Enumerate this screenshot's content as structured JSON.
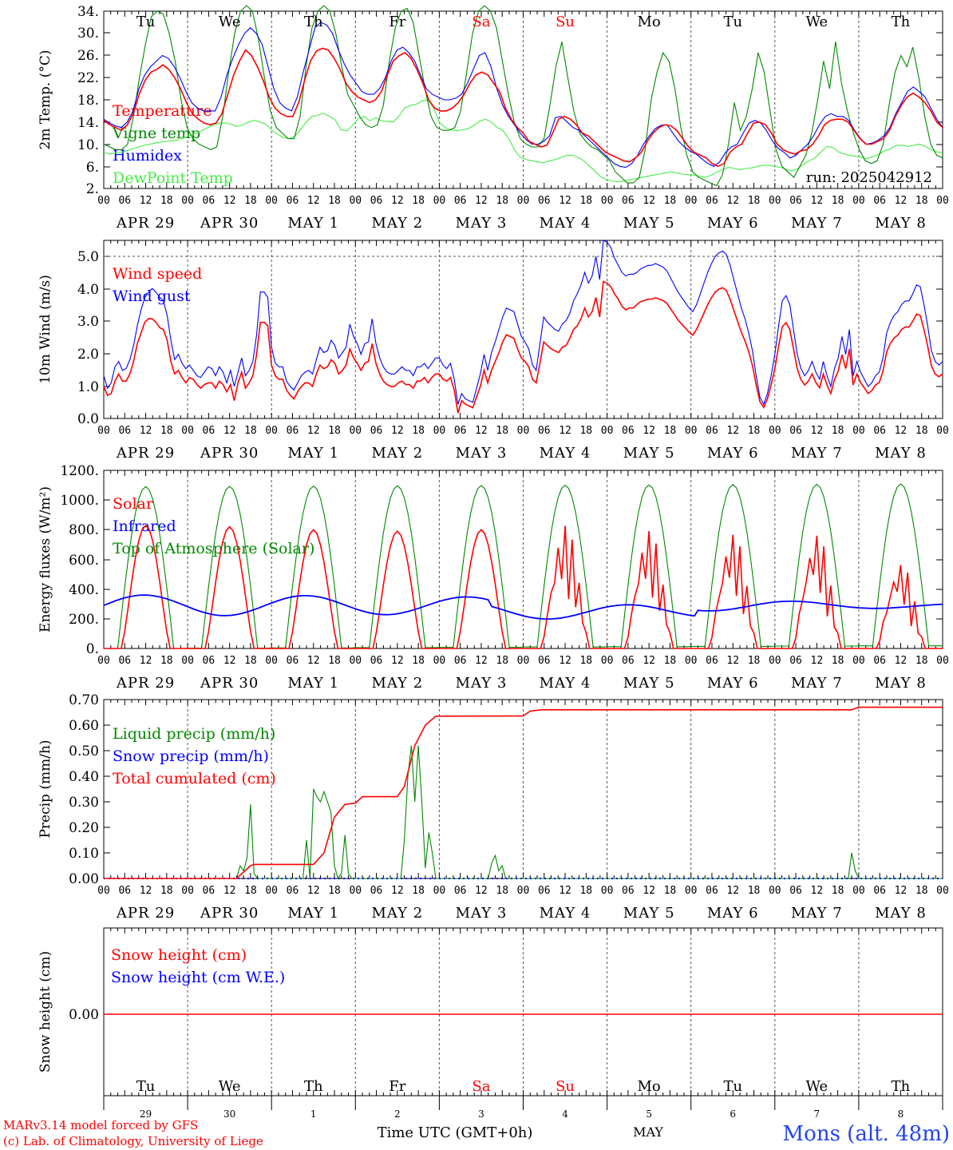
{
  "chart_data": [
    {
      "id": "temp",
      "type": "line",
      "ylabel": "2m Temp. (°C)",
      "ylim": [
        2,
        34
      ],
      "yticks": [
        "34.",
        "30.",
        "26.",
        "22.",
        "18.",
        "14.",
        "10.",
        "6.",
        "2."
      ],
      "legend": [
        "Temperature",
        "Vigne temp",
        "Humidex",
        "DewPoint Temp"
      ],
      "annotation": "run: 2025042912",
      "series": [
        {
          "name": "Temperature",
          "color": "#ff0000",
          "values": [
            14.3,
            13.5,
            13.0,
            12.5,
            13.5,
            15.5,
            19,
            21.5,
            23,
            23.5,
            24.3,
            23.5,
            22,
            20,
            17.5,
            15.5,
            14.5,
            13.8,
            13.5,
            13.8,
            15.5,
            19,
            22.5,
            25,
            27,
            26,
            24,
            21.5,
            18.5,
            16.5,
            15.5,
            15,
            15,
            17.5,
            21.5,
            25,
            26.8,
            27.3,
            27,
            25.5,
            23.5,
            21,
            19.5,
            18.5,
            18,
            17.5,
            18,
            19.5,
            22.5,
            25,
            26,
            26.5,
            25.5,
            23.5,
            21,
            18,
            16.5,
            16,
            16,
            16.5,
            17.5,
            19,
            21,
            22.5,
            23,
            22.5,
            21,
            19.5,
            16.5,
            14.5,
            13,
            12,
            10.5,
            10,
            9.5,
            9.8,
            12,
            14.5,
            15,
            14.5,
            13.5,
            12,
            11.5,
            10.5,
            9.5,
            8.5,
            8,
            7.5,
            7,
            6.8,
            7.5,
            8.5,
            10.5,
            12,
            13,
            13.5,
            13.3,
            12.5,
            11,
            9.5,
            8.5,
            8,
            7.5,
            6.5,
            6,
            6.5,
            8.5,
            9.5,
            10,
            12,
            13.8,
            14,
            13.5,
            12,
            10,
            9,
            8.5,
            8.2,
            8.8,
            9,
            10,
            11.5,
            13.5,
            14.3,
            14.5,
            14.5,
            14,
            12.5,
            11,
            10,
            10,
            10.5,
            11,
            12.5,
            15,
            17,
            18.5,
            19.2,
            18.5,
            17.5,
            16,
            14,
            13
          ]
        },
        {
          "name": "Vigne temp",
          "color": "#008800",
          "values": [
            10,
            9.5,
            9,
            9,
            10,
            15,
            22,
            28,
            33,
            34,
            33.5,
            30,
            25,
            18,
            13,
            11,
            10,
            9.5,
            9,
            9.5,
            15,
            23,
            30,
            34,
            35,
            34,
            29,
            22,
            16,
            13,
            12,
            11,
            11,
            15,
            24,
            31,
            34,
            35,
            34,
            30,
            24,
            19,
            17,
            15,
            13.5,
            13,
            13.5,
            17,
            25,
            31,
            34,
            34.5,
            32,
            26,
            20,
            15,
            13,
            12.5,
            12.5,
            13,
            16,
            23,
            30,
            34,
            35,
            34,
            31,
            25,
            19,
            14,
            11,
            10,
            9.5,
            9.5,
            11,
            17,
            24,
            28.5,
            22,
            16,
            12,
            10.5,
            9.5,
            9,
            8,
            7,
            5,
            4,
            3,
            3,
            4,
            9,
            18,
            23,
            26.5,
            25,
            20,
            13,
            8,
            5,
            4,
            3.5,
            3,
            2.5,
            4.5,
            10,
            17.5,
            12.5,
            15,
            20,
            26.5,
            23,
            16,
            9,
            6,
            5,
            4,
            6,
            8,
            12,
            18,
            25,
            20,
            28.5,
            21,
            16,
            12,
            9,
            7,
            6.5,
            7,
            10,
            17,
            23,
            26,
            24,
            27.5,
            22,
            15,
            10,
            8,
            7.5
          ]
        },
        {
          "name": "Humidex",
          "color": "#0000ff",
          "values": [
            14.5,
            13.8,
            13.3,
            13,
            14,
            16,
            20,
            22.5,
            24,
            25,
            26,
            25.5,
            24,
            22,
            19.5,
            17.5,
            16.5,
            16,
            16,
            16,
            18.5,
            22.5,
            25.5,
            28,
            30,
            31,
            30,
            28,
            24,
            20,
            17.5,
            16.5,
            16,
            18.5,
            23,
            27,
            31,
            32,
            31.5,
            30,
            27,
            24.5,
            22.5,
            21,
            19.5,
            19,
            19,
            20,
            22,
            25,
            27,
            27.5,
            26.5,
            25,
            22.5,
            20,
            19,
            18.5,
            18,
            18,
            18.3,
            19,
            21,
            23.5,
            26,
            26.5,
            24,
            20,
            17,
            15,
            13.5,
            12,
            10.8,
            10,
            10,
            10.5,
            11.5,
            14.8,
            15,
            14,
            13,
            12.5,
            11.5,
            10.5,
            9.5,
            8.5,
            7.5,
            6.5,
            6,
            5.8,
            6.5,
            8,
            10,
            11.5,
            12.8,
            13.4,
            13.5,
            12,
            10.5,
            9.5,
            8.7,
            8.2,
            7.3,
            6.5,
            6,
            6.8,
            8.5,
            9.5,
            10,
            12,
            13.8,
            14.3,
            13.8,
            12.4,
            10.5,
            9.2,
            8.5,
            7.5,
            8,
            9,
            10,
            11.5,
            13.5,
            15,
            15.5,
            15,
            15,
            14.3,
            12.5,
            11,
            10,
            10.2,
            10.7,
            11.5,
            13,
            15.5,
            17.5,
            19.5,
            20.3,
            19.5,
            18.5,
            16.5,
            14.5,
            13
          ]
        },
        {
          "name": "DewPoint Temp",
          "color": "#44ee44",
          "values": [
            8.5,
            8.2,
            8.4,
            8.5,
            8.8,
            9.2,
            9.5,
            9.8,
            10,
            10.2,
            10.4,
            10.5,
            10.6,
            10.8,
            11.2,
            11.6,
            12,
            12.5,
            13,
            13.5,
            13.8,
            13.8,
            13.6,
            13.2,
            13.4,
            14,
            14.3,
            14,
            13.6,
            12.6,
            11.8,
            11.2,
            11,
            11.4,
            12.6,
            14,
            15,
            15.2,
            15.6,
            15,
            14.4,
            12.6,
            12.4,
            13.4,
            14.6,
            15,
            14.2,
            14.8,
            14.2,
            14.1,
            14,
            15,
            16.5,
            17,
            17.2,
            17.8,
            18,
            16.6,
            14,
            13,
            12.6,
            12.4,
            12.6,
            12.8,
            13.4,
            14.2,
            14.5,
            14,
            13,
            12.5,
            11,
            9,
            7.6,
            7.2,
            7,
            6.8,
            6.6,
            7,
            7.2,
            7.6,
            8,
            8,
            7.6,
            7,
            6,
            5,
            4,
            3.6,
            3.3,
            3.2,
            3.4,
            3.6,
            3.8,
            4,
            4.2,
            4.4,
            4.6,
            4.8,
            5,
            4.8,
            4.6,
            4.5,
            4.4,
            4.2,
            4,
            4.4,
            5,
            5.4,
            5.8,
            5.6,
            5.4,
            5.6,
            5.7,
            6,
            6.2,
            6.2,
            6,
            5.8,
            5.4,
            5.2,
            5.6,
            6.4,
            7,
            7.6,
            8.6,
            9.6,
            9.4,
            8.6,
            8.2,
            8,
            7.8,
            7.6,
            7.4,
            7.8,
            8.2,
            8.8,
            9.2,
            9.8,
            9.8,
            9.6,
            9.8,
            10,
            9.6,
            9,
            8.6,
            8.4
          ]
        }
      ]
    },
    {
      "id": "wind",
      "type": "line",
      "ylabel": "10m Wind (m/s)",
      "ylim": [
        0,
        5
      ],
      "yticks": [
        "5.0",
        "4.0",
        "3.0",
        "2.0",
        "1.0",
        "0.0"
      ],
      "legend": [
        "Wind speed",
        "Wind gust"
      ],
      "series": [
        {
          "name": "Wind speed",
          "color": "#ff0000",
          "values": [
            0.9,
            0.65,
            0.7,
            1.05,
            1.25,
            1.05,
            1.05,
            1.25,
            1.6,
            2.1,
            2.4,
            2.7,
            2.8,
            2.8,
            2.7,
            2.55,
            2.5,
            2.2,
            1.6,
            1.25,
            1.35,
            1.15,
            1.0,
            1.15,
            1.1,
            0.95,
            0.85,
            0.95,
            1.0,
            1.0,
            0.85,
            1.05,
            0.95,
            0.75,
            0.95,
            0.5,
            1.0,
            1.3,
            0.85,
            1.0,
            1.2,
            1.8,
            2.7,
            2.7,
            2.6,
            1.5,
            1.2,
            1.1,
            1.1,
            0.8,
            0.65,
            0.55,
            0.75,
            0.9,
            1.0,
            1.0,
            0.9,
            1.25,
            1.5,
            1.4,
            1.45,
            1.65,
            1.55,
            1.25,
            1.35,
            1.5,
            1.95,
            1.7,
            1.55,
            1.35,
            1.55,
            1.6,
            2.1,
            1.55,
            1.25,
            1.05,
            0.95,
            0.9,
            0.9,
            1.0,
            1.05,
            0.95,
            0.95,
            0.85,
            1.05,
            1.05,
            1.15,
            1.0,
            1.15,
            1.25,
            1.25,
            1.1,
            1.05,
            1.15,
            0.8,
            0.15,
            0.5,
            0.4,
            0.35,
            0.3,
            0.6,
            0.9,
            1.35,
            1.0,
            1.35,
            1.6,
            1.85,
            2.15,
            2.35,
            2.3,
            2.25,
            1.95,
            1.7,
            1.6,
            1.45,
            1.1,
            1.0,
            1.55,
            2.15,
            2.05,
            1.95,
            1.9,
            1.85,
            2.0,
            2.05,
            2.25,
            2.5,
            2.6,
            2.8,
            3.1,
            2.85,
            3.0,
            3.4,
            2.85,
            3.85,
            3.8,
            3.7,
            3.5,
            3.35,
            3.15,
            3.05,
            3.1,
            3.1
          ]
        },
        {
          "name": "Wind gust",
          "color": "#0000ff",
          "values": [
            1.2,
            0.85,
            1.0,
            1.45,
            1.6,
            1.35,
            1.4,
            1.65,
            2.05,
            2.6,
            3.05,
            3.4,
            3.55,
            3.65,
            3.55,
            3.4,
            3.3,
            2.9,
            2.2,
            1.65,
            1.8,
            1.55,
            1.4,
            1.5,
            1.35,
            1.2,
            1.15,
            1.3,
            1.45,
            1.4,
            1.2,
            1.45,
            1.3,
            1.0,
            1.35,
            0.9,
            1.3,
            1.7,
            1.2,
            1.35,
            1.6,
            2.35,
            3.55,
            3.55,
            3.4,
            2.0,
            1.55,
            1.45,
            1.45,
            1.05,
            0.9,
            0.8,
            1.0,
            1.2,
            1.3,
            1.35,
            1.25,
            1.65,
            2.0,
            1.85,
            1.9,
            2.2,
            2.05,
            1.7,
            1.85,
            2.0,
            2.65,
            2.3,
            2.1,
            1.8,
            2.1,
            2.15,
            2.8,
            2.1,
            1.7,
            1.45,
            1.3,
            1.25,
            1.25,
            1.35,
            1.45,
            1.35,
            1.35,
            1.2,
            1.45,
            1.45,
            1.55,
            1.4,
            1.55,
            1.7,
            1.7,
            1.5,
            1.4,
            1.55,
            1.1,
            0.4,
            0.7,
            0.55,
            0.5,
            0.45,
            0.85,
            1.25,
            1.8,
            1.35,
            1.85,
            2.15,
            2.5,
            2.85,
            3.1,
            3.05,
            3.0,
            2.65,
            2.3,
            2.15,
            1.95,
            1.5,
            1.35,
            2.1,
            2.85,
            2.7,
            2.6,
            2.5,
            2.45,
            2.65,
            2.75,
            2.95,
            3.3,
            3.5,
            3.75,
            4.1,
            3.8,
            4.0,
            4.55,
            3.9,
            5.0,
            4.95,
            4.8,
            4.5,
            4.3,
            4.1,
            4.0,
            4.05,
            4.05
          ]
        }
      ]
    },
    {
      "id": "energy",
      "type": "line",
      "ylabel": "Energy fluxes (W/m²)",
      "ylim": [
        0,
        1200
      ],
      "yticks": [
        "1200.",
        "1000.",
        "800.",
        "600.",
        "400.",
        "200.",
        "0."
      ],
      "legend": [
        "Solar",
        "Infrared",
        "Top of Atmosphere (Solar)"
      ],
      "series": [
        {
          "name": "Solar",
          "color": "#ff0000"
        },
        {
          "name": "Infrared",
          "color": "#0000ff"
        },
        {
          "name": "Top of Atmosphere (Solar)",
          "color": "#008800"
        }
      ]
    },
    {
      "id": "precip",
      "type": "line",
      "ylabel": "Precip (mm/h)",
      "ylim": [
        0,
        0.7
      ],
      "yticks": [
        "0.70",
        "0.60",
        "0.50",
        "0.40",
        "0.30",
        "0.20",
        "0.10",
        "0.00"
      ],
      "legend": [
        "Liquid precip (mm/h)",
        "Snow precip (mm/h)",
        "Total cumulated (cm)"
      ],
      "series": [
        {
          "name": "Liquid precip (mm/h)",
          "color": "#008800"
        },
        {
          "name": "Snow precip (mm/h)",
          "color": "#0000ff"
        },
        {
          "name": "Total cumulated (cm)",
          "color": "#ff0000"
        }
      ]
    },
    {
      "id": "snow",
      "type": "line",
      "ylabel": "Snow height (cm)",
      "yticks": [
        "0.00"
      ],
      "legend": [
        "Snow height (cm)",
        "Snow height (cm W.E.)"
      ],
      "series": [
        {
          "name": "Snow height (cm)",
          "color": "#ff0000",
          "values": [
            0,
            0
          ]
        },
        {
          "name": "Snow height (cm W.E.)",
          "color": "#0000ff"
        }
      ]
    }
  ],
  "days": [
    "Tu",
    "We",
    "Th",
    "Fr",
    "Sa",
    "Su",
    "Mo",
    "Tu",
    "We",
    "Th"
  ],
  "weekend_days": [
    4,
    5
  ],
  "dates": [
    "APR 29",
    "APR 30",
    "MAY  1",
    "MAY  2",
    "MAY  3",
    "MAY  4",
    "MAY  5",
    "MAY  6",
    "MAY  7",
    "MAY  8"
  ],
  "hour_labels": [
    "00",
    "06",
    "12",
    "18"
  ],
  "final_hour_label": "00",
  "bottom_day_numbers": [
    "29",
    "30",
    "1",
    "2",
    "3",
    "4",
    "5",
    "6",
    "7",
    "8"
  ],
  "bottom_month": "MAY",
  "xlabel": "Time UTC (GMT+0h)",
  "credits": [
    "MARv3.14 model forced by GFS",
    "(c) Lab. of Climatology, University of Liege"
  ],
  "station": "Mons (alt. 48m)",
  "colors": {
    "red": "#ff0000",
    "blue": "#0000ff",
    "green": "#008800",
    "lightgreen": "#44ee44",
    "grid": "#555555"
  }
}
